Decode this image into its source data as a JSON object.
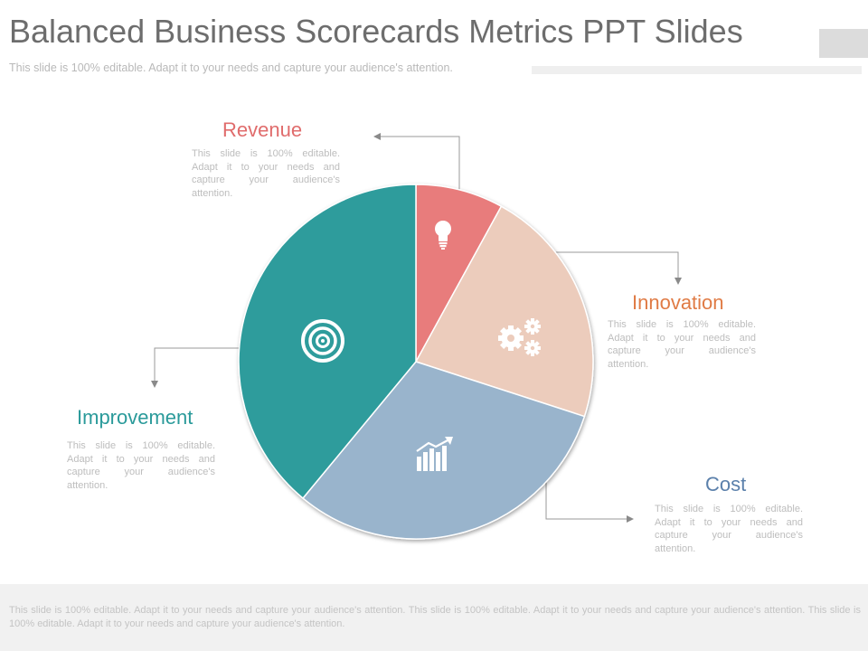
{
  "title": "Balanced Business Scorecards Metrics PPT Slides",
  "subtitle": "This slide is 100% editable. Adapt it to your needs and capture your audience's attention.",
  "footer_text": "This slide is 100% editable. Adapt it to your needs and capture your audience's attention. This slide is 100% editable. Adapt it to your needs and capture your audience's attention. This slide is 100% editable. Adapt it to your needs and capture your audience's attention.",
  "sections": {
    "revenue": {
      "label": "Revenue",
      "text": "This slide is 100% editable. Adapt it to your needs and capture your audience's attention."
    },
    "innovation": {
      "label": "Innovation",
      "text": "This slide is 100% editable. Adapt it to your needs and capture your audience's attention."
    },
    "cost": {
      "label": "Cost",
      "text": "This slide is 100% editable. Adapt it to your needs and capture your audience's attention."
    },
    "improvement": {
      "label": "Improvement",
      "text": "This slide is 100% editable. Adapt it to your needs and capture your audience's attention."
    }
  },
  "colors": {
    "revenue": "#e87c7c",
    "innovation": "#ecccbc",
    "cost": "#99b4cc",
    "improvement": "#2e9c9c",
    "revenue_label": "#e06c6c",
    "innovation_label": "#e07b45",
    "cost_label": "#5b80ab",
    "improvement_label": "#2a9a9a"
  },
  "chart_data": {
    "type": "pie",
    "series": [
      {
        "label_key": "revenue",
        "value": 8,
        "icon": "lightbulb-icon"
      },
      {
        "label_key": "innovation",
        "value": 22,
        "icon": "gears-icon"
      },
      {
        "label_key": "cost",
        "value": 31,
        "icon": "growth-chart-icon"
      },
      {
        "label_key": "improvement",
        "value": 39,
        "icon": "target-icon"
      }
    ],
    "start_angle_deg": 0,
    "direction": "clockwise"
  }
}
